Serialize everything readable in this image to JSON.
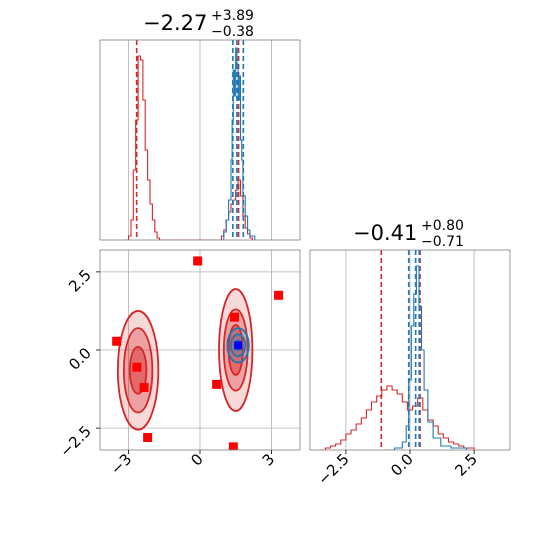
{
  "chart_data": [
    {
      "panel": "marginal-param1",
      "type": "histogram",
      "title": {
        "median": "−2.27",
        "upper": "+3.89",
        "lower": "−0.38"
      },
      "xlim": [
        -4.2,
        4.2
      ],
      "xticks": [
        -3,
        0,
        3
      ],
      "grid": true,
      "series": [
        {
          "color": "#d62728",
          "bins": [
            [
              -3.2,
              0
            ],
            [
              -3.0,
              0.02
            ],
            [
              -2.9,
              0.1
            ],
            [
              -2.8,
              0.35
            ],
            [
              -2.7,
              0.6
            ],
            [
              -2.6,
              0.92
            ],
            [
              -2.5,
              0.9
            ],
            [
              -2.4,
              0.7
            ],
            [
              -2.3,
              0.45
            ],
            [
              -2.2,
              0.3
            ],
            [
              -2.1,
              0.18
            ],
            [
              -2.0,
              0.1
            ],
            [
              -1.9,
              0.04
            ],
            [
              -1.8,
              0.01
            ],
            [
              -1.7,
              0
            ],
            [
              0.8,
              0
            ],
            [
              0.9,
              0.02
            ],
            [
              1.0,
              0.05
            ],
            [
              1.1,
              0.1
            ],
            [
              1.2,
              0.14
            ],
            [
              1.3,
              0.18
            ],
            [
              1.4,
              0.2
            ],
            [
              1.5,
              0.25
            ],
            [
              1.6,
              0.3
            ],
            [
              1.7,
              0.22
            ],
            [
              1.8,
              0.12
            ],
            [
              1.9,
              0.06
            ],
            [
              2.0,
              0.03
            ],
            [
              2.1,
              0.01
            ],
            [
              2.2,
              0
            ]
          ],
          "quantiles": [
            -2.66,
            1.62
          ]
        },
        {
          "color": "#1f77b4",
          "bins": [
            [
              0.8,
              0
            ],
            [
              1.0,
              0.04
            ],
            [
              1.1,
              0.1
            ],
            [
              1.2,
              0.2
            ],
            [
              1.3,
              0.4
            ],
            [
              1.35,
              0.6
            ],
            [
              1.4,
              0.85
            ],
            [
              1.45,
              0.72
            ],
            [
              1.5,
              0.96
            ],
            [
              1.55,
              0.88
            ],
            [
              1.6,
              0.7
            ],
            [
              1.65,
              0.82
            ],
            [
              1.7,
              0.5
            ],
            [
              1.75,
              0.4
            ],
            [
              1.8,
              0.22
            ],
            [
              1.9,
              0.12
            ],
            [
              2.0,
              0.05
            ],
            [
              2.1,
              0.02
            ],
            [
              2.3,
              0
            ]
          ],
          "quantiles": [
            1.38,
            1.55,
            1.82
          ]
        }
      ]
    },
    {
      "panel": "marginal-param2",
      "type": "histogram",
      "title": {
        "median": "−0.41",
        "upper": "+0.80",
        "lower": "−0.71"
      },
      "xlim": [
        -3.9,
        3.9
      ],
      "xticks": [
        -2.5,
        0.0,
        2.5
      ],
      "xticklabels": [
        "−2.5",
        "0.0",
        "2.5"
      ],
      "grid": true,
      "series": [
        {
          "color": "#d62728",
          "bins": [
            [
              -3.5,
              0
            ],
            [
              -3.3,
              0.01
            ],
            [
              -3.1,
              0.02
            ],
            [
              -2.9,
              0.03
            ],
            [
              -2.7,
              0.05
            ],
            [
              -2.5,
              0.08
            ],
            [
              -2.3,
              0.1
            ],
            [
              -2.1,
              0.13
            ],
            [
              -1.9,
              0.16
            ],
            [
              -1.7,
              0.2
            ],
            [
              -1.5,
              0.24
            ],
            [
              -1.3,
              0.27
            ],
            [
              -1.1,
              0.3
            ],
            [
              -0.9,
              0.32
            ],
            [
              -0.7,
              0.3
            ],
            [
              -0.5,
              0.28
            ],
            [
              -0.3,
              0.24
            ],
            [
              -0.1,
              0.2
            ],
            [
              0.1,
              0.22
            ],
            [
              0.3,
              0.26
            ],
            [
              0.5,
              0.2
            ],
            [
              0.7,
              0.15
            ],
            [
              0.9,
              0.12
            ],
            [
              1.1,
              0.08
            ],
            [
              1.3,
              0.06
            ],
            [
              1.5,
              0.04
            ],
            [
              1.7,
              0.03
            ],
            [
              1.9,
              0.02
            ],
            [
              2.1,
              0.01
            ],
            [
              2.3,
              0.01
            ],
            [
              2.5,
              0
            ]
          ],
          "quantiles": [
            -1.12,
            0.39
          ]
        },
        {
          "color": "#1f77b4",
          "bins": [
            [
              -1.0,
              0
            ],
            [
              -0.6,
              0.01
            ],
            [
              -0.3,
              0.04
            ],
            [
              -0.15,
              0.12
            ],
            [
              -0.05,
              0.35
            ],
            [
              0.05,
              0.62
            ],
            [
              0.15,
              0.78
            ],
            [
              0.25,
              0.92
            ],
            [
              0.35,
              0.72
            ],
            [
              0.45,
              0.5
            ],
            [
              0.55,
              0.3
            ],
            [
              0.7,
              0.14
            ],
            [
              0.9,
              0.06
            ],
            [
              1.2,
              0.02
            ],
            [
              1.6,
              0.01
            ],
            [
              2.2,
              0
            ]
          ],
          "quantiles": [
            -0.05,
            0.22,
            0.36
          ]
        }
      ]
    },
    {
      "panel": "joint-param1-param2",
      "type": "scatter",
      "xlim": [
        -4.2,
        4.2
      ],
      "ylim": [
        -3.2,
        3.2
      ],
      "xticks": [
        -3,
        0,
        3
      ],
      "yticks": [
        -2.5,
        0.0,
        2.5
      ],
      "yticklabels": [
        "−2.5",
        "0.0",
        "2.5"
      ],
      "grid": true,
      "contours": [
        {
          "color": "#d62728",
          "cx": -2.6,
          "cy": -0.65,
          "rx": [
            0.85,
            0.6,
            0.35
          ],
          "ry": [
            1.9,
            1.35,
            0.75
          ]
        },
        {
          "color": "#d62728",
          "cx": 1.5,
          "cy": 0.0,
          "rx": [
            0.7,
            0.5,
            0.3
          ],
          "ry": [
            1.95,
            1.3,
            0.8
          ]
        },
        {
          "color": "#1f77b4",
          "cx": 1.6,
          "cy": 0.15,
          "rx": [
            0.45,
            0.3,
            0.15
          ],
          "ry": [
            0.55,
            0.35,
            0.15
          ]
        }
      ],
      "markers": {
        "color": "#ff0000",
        "points": [
          [
            -3.5,
            0.28
          ],
          [
            -2.65,
            -0.55
          ],
          [
            -2.35,
            -1.2
          ],
          [
            -2.2,
            -2.8
          ],
          [
            -0.1,
            2.85
          ],
          [
            0.7,
            -1.1
          ],
          [
            1.45,
            1.05
          ],
          [
            1.4,
            -3.1
          ],
          [
            3.3,
            1.75
          ]
        ]
      },
      "truth": {
        "color": "#0000ff",
        "point": [
          1.6,
          0.15
        ]
      }
    }
  ]
}
